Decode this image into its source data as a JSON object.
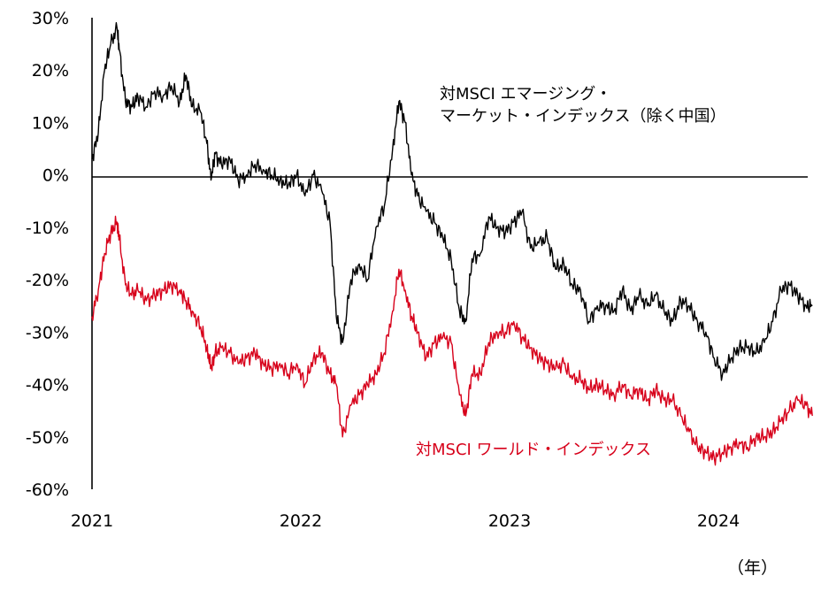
{
  "chart_data": {
    "type": "line",
    "title": "",
    "xlabel": "",
    "ylabel": "",
    "x_unit_label": "（年）",
    "ylim": [
      -60,
      30
    ],
    "yticks": [
      30,
      20,
      10,
      0,
      -10,
      -20,
      -30,
      -40,
      -50,
      -60
    ],
    "ytick_labels": [
      "30%",
      "20%",
      "10%",
      "0%",
      "-10%",
      "-20%",
      "-30%",
      "-40%",
      "-50%",
      "-60%"
    ],
    "xlim": [
      2021.0,
      2024.45
    ],
    "xticks": [
      2021,
      2022,
      2023,
      2024
    ],
    "xtick_labels": [
      "2021",
      "2022",
      "2023",
      "2024"
    ],
    "zero_line": true,
    "annotations": {
      "em_line1": "対MSCI エマージング・",
      "em_line2": "マーケット・インデックス（除く中国）",
      "world": "対MSCI ワールド・インデックス"
    },
    "colors": {
      "em": "#000000",
      "world": "#d7001a",
      "axis": "#000000"
    },
    "series": [
      {
        "name": "対MSCI エマージング・マーケット・インデックス（除く中国）",
        "color": "#000000",
        "x": [
          2021.0,
          2021.03,
          2021.06,
          2021.09,
          2021.12,
          2021.13,
          2021.16,
          2021.19,
          2021.22,
          2021.26,
          2021.3,
          2021.34,
          2021.38,
          2021.42,
          2021.45,
          2021.48,
          2021.52,
          2021.55,
          2021.57,
          2021.59,
          2021.62,
          2021.66,
          2021.7,
          2021.74,
          2021.78,
          2021.82,
          2021.86,
          2021.9,
          2021.94,
          2021.98,
          2022.02,
          2022.06,
          2022.1,
          2022.14,
          2022.17,
          2022.2,
          2022.24,
          2022.28,
          2022.32,
          2022.36,
          2022.4,
          2022.44,
          2022.47,
          2022.5,
          2022.53,
          2022.56,
          2022.6,
          2022.64,
          2022.68,
          2022.72,
          2022.76,
          2022.79,
          2022.82,
          2022.86,
          2022.9,
          2022.94,
          2022.98,
          2023.02,
          2023.06,
          2023.1,
          2023.14,
          2023.18,
          2023.22,
          2023.26,
          2023.3,
          2023.34,
          2023.38,
          2023.42,
          2023.46,
          2023.5,
          2023.54,
          2023.58,
          2023.62,
          2023.66,
          2023.7,
          2023.74,
          2023.78,
          2023.82,
          2023.86,
          2023.9,
          2023.94,
          2023.98,
          2024.02,
          2024.06,
          2024.1,
          2024.14,
          2024.18,
          2024.22,
          2024.26,
          2024.3,
          2024.34,
          2024.38,
          2024.42,
          2024.45
        ],
        "values": [
          3,
          8,
          20,
          25,
          28,
          24,
          14,
          13,
          15,
          13,
          16,
          15,
          17,
          14,
          19,
          13,
          12,
          6,
          -1,
          4,
          2,
          3,
          -1,
          0,
          2,
          1,
          0,
          -1,
          -2,
          0,
          -4,
          0,
          -3,
          -9,
          -27,
          -32,
          -20,
          -17,
          -20,
          -10,
          -6,
          5,
          14,
          10,
          0,
          -4,
          -7,
          -9,
          -12,
          -16,
          -26,
          -28,
          -16,
          -15,
          -8,
          -10,
          -11,
          -9,
          -7,
          -14,
          -13,
          -12,
          -18,
          -17,
          -21,
          -22,
          -28,
          -25,
          -25,
          -26,
          -22,
          -26,
          -23,
          -25,
          -23,
          -26,
          -28,
          -24,
          -25,
          -28,
          -30,
          -35,
          -38,
          -35,
          -33,
          -33,
          -34,
          -32,
          -28,
          -22,
          -21,
          -23,
          -25,
          -25
        ]
      },
      {
        "name": "対MSCI ワールド・インデックス",
        "color": "#d7001a",
        "x": [
          2021.0,
          2021.03,
          2021.06,
          2021.09,
          2021.12,
          2021.13,
          2021.16,
          2021.19,
          2021.22,
          2021.26,
          2021.3,
          2021.34,
          2021.38,
          2021.42,
          2021.45,
          2021.48,
          2021.52,
          2021.55,
          2021.57,
          2021.59,
          2021.62,
          2021.66,
          2021.7,
          2021.74,
          2021.78,
          2021.82,
          2021.86,
          2021.9,
          2021.94,
          2021.98,
          2022.02,
          2022.06,
          2022.1,
          2022.14,
          2022.17,
          2022.2,
          2022.24,
          2022.28,
          2022.32,
          2022.36,
          2022.4,
          2022.44,
          2022.47,
          2022.5,
          2022.53,
          2022.56,
          2022.6,
          2022.64,
          2022.68,
          2022.72,
          2022.76,
          2022.79,
          2022.82,
          2022.86,
          2022.9,
          2022.94,
          2022.98,
          2023.02,
          2023.06,
          2023.1,
          2023.14,
          2023.18,
          2023.22,
          2023.26,
          2023.3,
          2023.34,
          2023.38,
          2023.42,
          2023.46,
          2023.5,
          2023.54,
          2023.58,
          2023.62,
          2023.66,
          2023.7,
          2023.74,
          2023.78,
          2023.82,
          2023.86,
          2023.9,
          2023.94,
          2023.98,
          2024.02,
          2024.06,
          2024.1,
          2024.14,
          2024.18,
          2024.22,
          2024.26,
          2024.3,
          2024.34,
          2024.38,
          2024.42,
          2024.45
        ],
        "values": [
          -27,
          -22,
          -15,
          -11,
          -9,
          -12,
          -21,
          -23,
          -22,
          -24,
          -23,
          -22,
          -21,
          -22,
          -24,
          -26,
          -29,
          -33,
          -37,
          -34,
          -33,
          -34,
          -36,
          -35,
          -34,
          -36,
          -37,
          -36,
          -38,
          -36,
          -40,
          -35,
          -34,
          -38,
          -40,
          -50,
          -44,
          -42,
          -40,
          -38,
          -34,
          -26,
          -18,
          -22,
          -27,
          -30,
          -35,
          -32,
          -31,
          -32,
          -42,
          -46,
          -38,
          -38,
          -32,
          -30,
          -30,
          -28,
          -31,
          -33,
          -35,
          -36,
          -37,
          -36,
          -39,
          -39,
          -41,
          -40,
          -41,
          -42,
          -40,
          -42,
          -41,
          -43,
          -41,
          -43,
          -43,
          -46,
          -49,
          -52,
          -53,
          -54,
          -53,
          -52,
          -51,
          -52,
          -50,
          -50,
          -49,
          -47,
          -45,
          -43,
          -44,
          -46
        ]
      }
    ]
  }
}
